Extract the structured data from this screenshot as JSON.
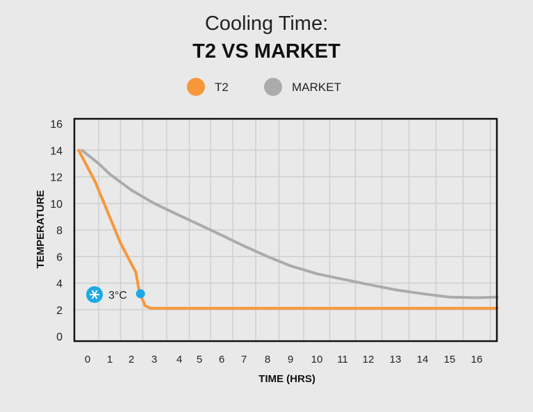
{
  "chart_data": {
    "type": "line",
    "title": "Cooling Time:",
    "subtitle": "T2 VS MARKET",
    "xlabel": "TIME (HRS)",
    "ylabel": "TEMPERATURE",
    "xticks": [
      0,
      1,
      2,
      3,
      4,
      5,
      6,
      7,
      8,
      9,
      10,
      11,
      12,
      13,
      14,
      15,
      16
    ],
    "yticks": [
      0,
      2,
      4,
      6,
      8,
      10,
      12,
      14,
      16
    ],
    "xlim": [
      -0.5,
      16.75
    ],
    "ylim": [
      0,
      16
    ],
    "grid": true,
    "legend_position": "top-center",
    "series": [
      {
        "name": "T2",
        "color": "#f7973a",
        "points": [
          [
            -0.4,
            14
          ],
          [
            0.35,
            11.6
          ],
          [
            1.5,
            7
          ],
          [
            2.2,
            4.8
          ],
          [
            2.35,
            3.3
          ],
          [
            2.6,
            2.3
          ],
          [
            2.85,
            2.1
          ],
          [
            16.75,
            2.1
          ]
        ]
      },
      {
        "name": "MARKET",
        "color": "#ababab",
        "points": [
          [
            -0.25,
            14
          ],
          [
            0.5,
            13
          ],
          [
            1,
            12.2
          ],
          [
            2,
            11
          ],
          [
            3,
            10
          ],
          [
            4,
            9.1
          ],
          [
            5,
            8.4
          ],
          [
            6,
            7.6
          ],
          [
            7,
            6.8
          ],
          [
            8,
            6
          ],
          [
            9,
            5.3
          ],
          [
            10,
            4.7
          ],
          [
            11,
            4.3
          ],
          [
            12,
            3.9
          ],
          [
            13,
            3.5
          ],
          [
            14,
            3.2
          ],
          [
            15,
            2.95
          ],
          [
            16,
            2.9
          ],
          [
            16.75,
            2.95
          ]
        ]
      }
    ],
    "annotation": {
      "label": "3°C",
      "x": 2.4,
      "y": 3.2,
      "color": "#1ba9e8",
      "icon": "snowflake-icon"
    }
  }
}
